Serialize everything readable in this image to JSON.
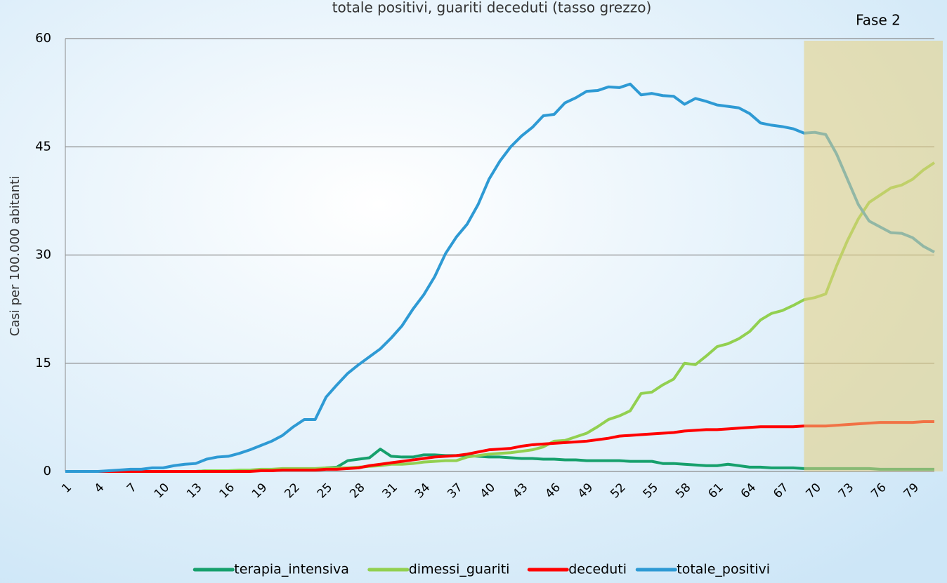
{
  "chart_data": {
    "type": "line",
    "title": "totale positivi, guariti  deceduti (tasso grezzo)",
    "y_label": "Casi per 100.000 abitanti",
    "annotation": "Fase 2",
    "highlight_from": 69,
    "highlight_color": "#e6cf7e",
    "x": [
      1,
      2,
      3,
      4,
      5,
      6,
      7,
      8,
      9,
      10,
      11,
      12,
      13,
      14,
      15,
      16,
      17,
      18,
      19,
      20,
      21,
      22,
      23,
      24,
      25,
      26,
      27,
      28,
      29,
      30,
      31,
      32,
      33,
      34,
      35,
      36,
      37,
      38,
      39,
      40,
      41,
      42,
      43,
      44,
      45,
      46,
      47,
      48,
      49,
      50,
      51,
      52,
      53,
      54,
      55,
      56,
      57,
      58,
      59,
      60,
      61,
      62,
      63,
      64,
      65,
      66,
      67,
      68,
      69,
      70,
      71,
      72,
      73,
      74,
      75,
      76,
      77,
      78,
      79,
      80,
      81
    ],
    "xlim": [
      1,
      81
    ],
    "xticks": [
      1,
      4,
      7,
      10,
      13,
      16,
      19,
      22,
      25,
      28,
      31,
      34,
      37,
      40,
      43,
      46,
      49,
      52,
      55,
      58,
      61,
      64,
      67,
      70,
      73,
      76,
      79
    ],
    "ylim": [
      0,
      60
    ],
    "yticks": [
      0,
      15,
      30,
      45,
      60
    ],
    "grid": true,
    "legend": "bottom",
    "series": [
      {
        "name": "terapia_intensiva",
        "color": "#16a06c",
        "values": [
          0,
          0,
          0,
          0,
          0,
          0,
          0,
          0,
          0,
          0,
          0,
          0,
          0,
          0.1,
          0.1,
          0.1,
          0.1,
          0.1,
          0.2,
          0.2,
          0.3,
          0.3,
          0.3,
          0.3,
          0.5,
          0.6,
          1.5,
          1.7,
          1.9,
          3.1,
          2.1,
          2.0,
          2.0,
          2.3,
          2.3,
          2.2,
          2.2,
          2.2,
          2.1,
          2.0,
          2.0,
          1.9,
          1.8,
          1.8,
          1.7,
          1.7,
          1.6,
          1.6,
          1.5,
          1.5,
          1.5,
          1.5,
          1.4,
          1.4,
          1.4,
          1.1,
          1.1,
          1.0,
          0.9,
          0.8,
          0.8,
          1.0,
          0.8,
          0.6,
          0.6,
          0.5,
          0.5,
          0.5,
          0.4,
          0.4,
          0.4,
          0.4,
          0.4,
          0.4,
          0.4,
          0.3,
          0.3,
          0.3,
          0.3,
          0.3,
          0.3
        ]
      },
      {
        "name": "dimessi_guariti",
        "color": "#92d050",
        "values": [
          0,
          0,
          0,
          0,
          0,
          0,
          0,
          0,
          0,
          0,
          0,
          0,
          0,
          0.1,
          0.1,
          0.1,
          0.2,
          0.2,
          0.3,
          0.3,
          0.4,
          0.4,
          0.4,
          0.4,
          0.5,
          0.5,
          0.5,
          0.6,
          0.7,
          0.8,
          1.0,
          1.0,
          1.1,
          1.3,
          1.4,
          1.5,
          1.5,
          2.0,
          2.2,
          2.4,
          2.5,
          2.6,
          2.8,
          3.0,
          3.4,
          4.2,
          4.3,
          4.8,
          5.3,
          6.2,
          7.2,
          7.7,
          8.4,
          10.8,
          11.0,
          12.0,
          12.8,
          15.0,
          14.8,
          16.0,
          17.3,
          17.7,
          18.4,
          19.4,
          21.0,
          21.9,
          22.3,
          23.0,
          23.8,
          24.1,
          24.6,
          28.5,
          32.0,
          35.0,
          37.3,
          38.3,
          39.3,
          39.7,
          40.5,
          41.8,
          42.8
        ]
      },
      {
        "name": "deceduti",
        "color": "#ff0000",
        "values": [
          0,
          0,
          0,
          0,
          0,
          0,
          0,
          0,
          0,
          0,
          0,
          0,
          0,
          0,
          0,
          0,
          0,
          0,
          0.1,
          0.1,
          0.2,
          0.2,
          0.2,
          0.2,
          0.3,
          0.3,
          0.4,
          0.5,
          0.8,
          1.0,
          1.2,
          1.4,
          1.6,
          1.8,
          2.0,
          2.1,
          2.2,
          2.4,
          2.7,
          3.0,
          3.1,
          3.2,
          3.5,
          3.7,
          3.8,
          3.9,
          4.0,
          4.1,
          4.2,
          4.4,
          4.6,
          4.9,
          5.0,
          5.1,
          5.2,
          5.3,
          5.4,
          5.6,
          5.7,
          5.8,
          5.8,
          5.9,
          6.0,
          6.1,
          6.2,
          6.2,
          6.2,
          6.2,
          6.3,
          6.3,
          6.3,
          6.4,
          6.5,
          6.6,
          6.7,
          6.8,
          6.8,
          6.8,
          6.8,
          6.9,
          6.9
        ]
      },
      {
        "name": "totale_positivi",
        "color": "#2e9ad4",
        "values": [
          0,
          0,
          0,
          0,
          0.1,
          0.2,
          0.3,
          0.3,
          0.5,
          0.5,
          0.8,
          1.0,
          1.1,
          1.7,
          2.0,
          2.1,
          2.5,
          3.0,
          3.6,
          4.2,
          5.0,
          6.2,
          7.2,
          7.2,
          10.3,
          12.0,
          13.6,
          14.8,
          15.9,
          17.0,
          18.5,
          20.2,
          22.5,
          24.5,
          27.0,
          30.2,
          32.5,
          34.3,
          37.0,
          40.5,
          43.0,
          45.0,
          46.5,
          47.7,
          49.3,
          49.5,
          51.1,
          51.8,
          52.7,
          52.8,
          53.3,
          53.2,
          53.7,
          52.2,
          52.4,
          52.1,
          52.0,
          50.9,
          51.7,
          51.3,
          50.8,
          50.6,
          50.4,
          49.6,
          48.3,
          48.0,
          47.8,
          47.5,
          46.9,
          47.0,
          46.7,
          44.0,
          40.5,
          37.0,
          34.7,
          33.9,
          33.1,
          33.0,
          32.4,
          31.2,
          30.4
        ]
      }
    ]
  }
}
